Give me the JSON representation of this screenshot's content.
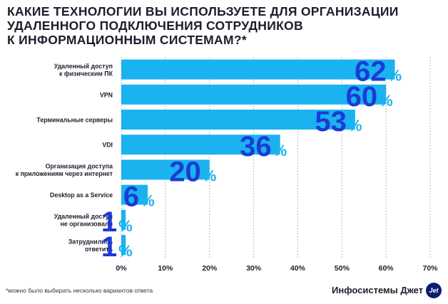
{
  "title_lines": [
    "КАКИЕ ТЕХНОЛОГИИ ВЫ ИСПОЛЬЗУЕТЕ ДЛЯ ОРГАНИЗАЦИИ",
    "УДАЛЕННОГО ПОДКЛЮЧЕНИЯ СОТРУДНИКОВ",
    "К ИНФОРМАЦИОННЫМ СИСТЕМАМ?*"
  ],
  "footnote": "*можно было выбирать несколько вариантов ответа",
  "brand": "Инфосистемы Джет",
  "brand_badge": "Jet",
  "colors": {
    "bar": "#1ab3f0",
    "value": "#1b3bd6",
    "percent": "#1ab3f0",
    "text": "#1d1d2b"
  },
  "chart_data": {
    "type": "bar",
    "orientation": "horizontal",
    "categories": [
      [
        "Удаленный доступ",
        "к физическим ПК"
      ],
      [
        "VPN"
      ],
      [
        "Терминальные серверы"
      ],
      [
        "VDI"
      ],
      [
        "Организация доступа",
        "к приложениям через интернет"
      ],
      [
        "Desktop as a Service"
      ],
      [
        "Удаленный доступ",
        "не организовали"
      ],
      [
        "Затруднились",
        "ответить"
      ]
    ],
    "values": [
      62,
      60,
      53,
      36,
      20,
      6,
      1,
      1
    ],
    "value_suffix": "%",
    "xlim": [
      0,
      70
    ],
    "xticks": [
      "0%",
      "10%",
      "20%",
      "30%",
      "40%",
      "50%",
      "60%",
      "70%"
    ],
    "grid": "vertical-dotted"
  }
}
